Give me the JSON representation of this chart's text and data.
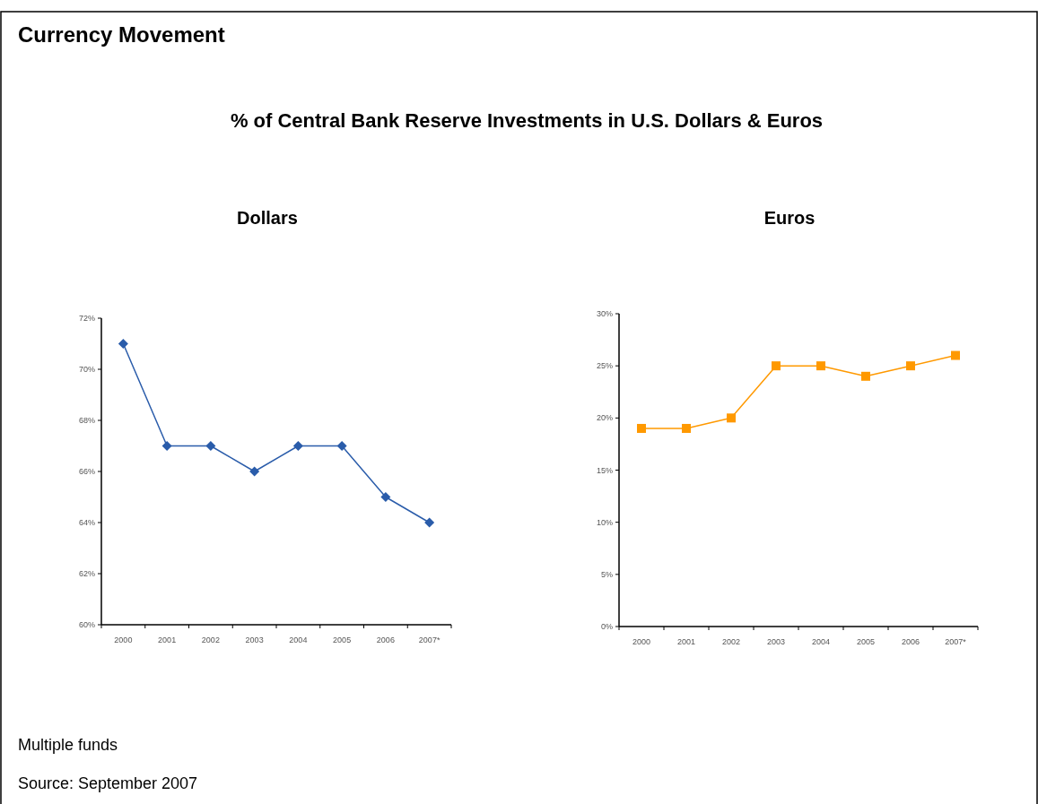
{
  "chart_data": [
    {
      "type": "line",
      "title": "Dollars",
      "categories": [
        "2000",
        "2001",
        "2002",
        "2003",
        "2004",
        "2005",
        "2006",
        "2007*"
      ],
      "series": [
        {
          "color": "#2a5caa",
          "values": [
            71,
            67,
            67,
            66,
            67,
            67,
            65,
            64
          ]
        }
      ],
      "ylim": [
        60,
        72
      ],
      "yticks": [
        {
          "value": 60,
          "label": "60%"
        },
        {
          "value": 62,
          "label": "62%"
        },
        {
          "value": 64,
          "label": "64%"
        },
        {
          "value": 66,
          "label": "66%"
        },
        {
          "value": 68,
          "label": "68%"
        },
        {
          "value": 70,
          "label": "70%"
        },
        {
          "value": 72,
          "label": "72%"
        }
      ],
      "marker": "diamond",
      "grid": false,
      "annotations": [
        "Currency Movement",
        "% of Central Bank Reserve Investments in U.S. Dollars & Euros",
        "Multiple funds",
        "Source: September 2007"
      ]
    },
    {
      "type": "line",
      "title": "Euros",
      "categories": [
        "2000",
        "2001",
        "2002",
        "2003",
        "2004",
        "2005",
        "2006",
        "2007*"
      ],
      "series": [
        {
          "color": "#ff9900",
          "values": [
            19,
            19,
            20,
            25,
            25,
            24,
            25,
            26
          ]
        }
      ],
      "ylim": [
        0,
        30
      ],
      "yticks": [
        {
          "value": 0,
          "label": "0%"
        },
        {
          "value": 5,
          "label": "5%"
        },
        {
          "value": 10,
          "label": "10%"
        },
        {
          "value": 15,
          "label": "15%"
        },
        {
          "value": 20,
          "label": "20%"
        },
        {
          "value": 25,
          "label": "25%"
        },
        {
          "value": 30,
          "label": "30%"
        }
      ],
      "marker": "square",
      "grid": false
    }
  ]
}
